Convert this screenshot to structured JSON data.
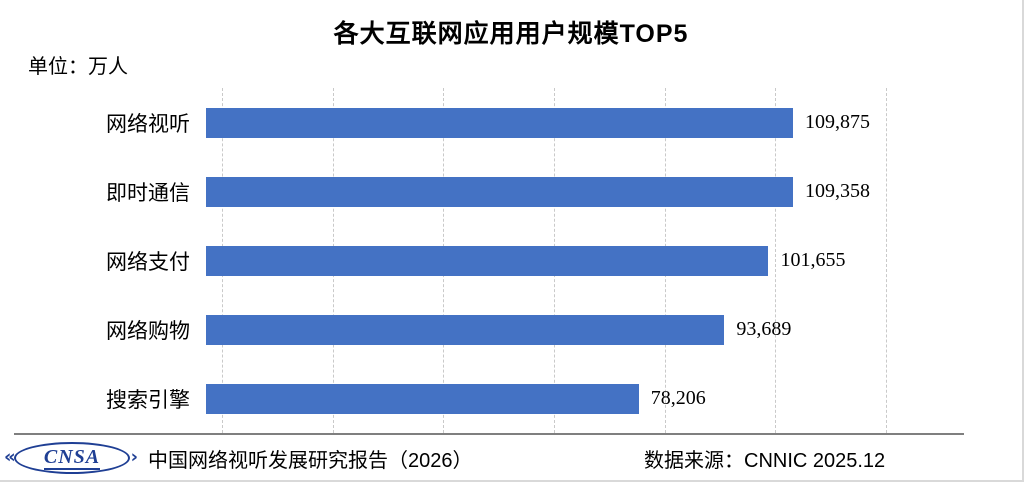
{
  "title": "各大互联网应用用户规模TOP5",
  "unit_label": "单位：万人",
  "colors": {
    "bar": "#4472C4",
    "gridline": "#C9C9C9",
    "axis_line": "#7F7F7F",
    "logo_blue": "#1F3F94"
  },
  "chart_data": {
    "type": "bar",
    "orientation": "horizontal",
    "title": "各大互联网应用用户规模TOP5",
    "unit": "万人",
    "categories": [
      "网络视听",
      "即时通信",
      "网络支付",
      "网络购物",
      "搜索引擎"
    ],
    "values": [
      109875,
      109358,
      101655,
      93689,
      78206
    ],
    "value_labels": [
      "109,875",
      "109,358",
      "101,655",
      "93,689",
      "78,206"
    ],
    "xlim": [
      0,
      120000
    ],
    "gridline_step": 20000,
    "grid": true,
    "legend": "none"
  },
  "footer": {
    "logo_text": "CNSA",
    "logo_chevrons": "«",
    "report": "中国网络视听发展研究报告（2026）",
    "source": "数据来源：CNNIC 2025.12"
  }
}
